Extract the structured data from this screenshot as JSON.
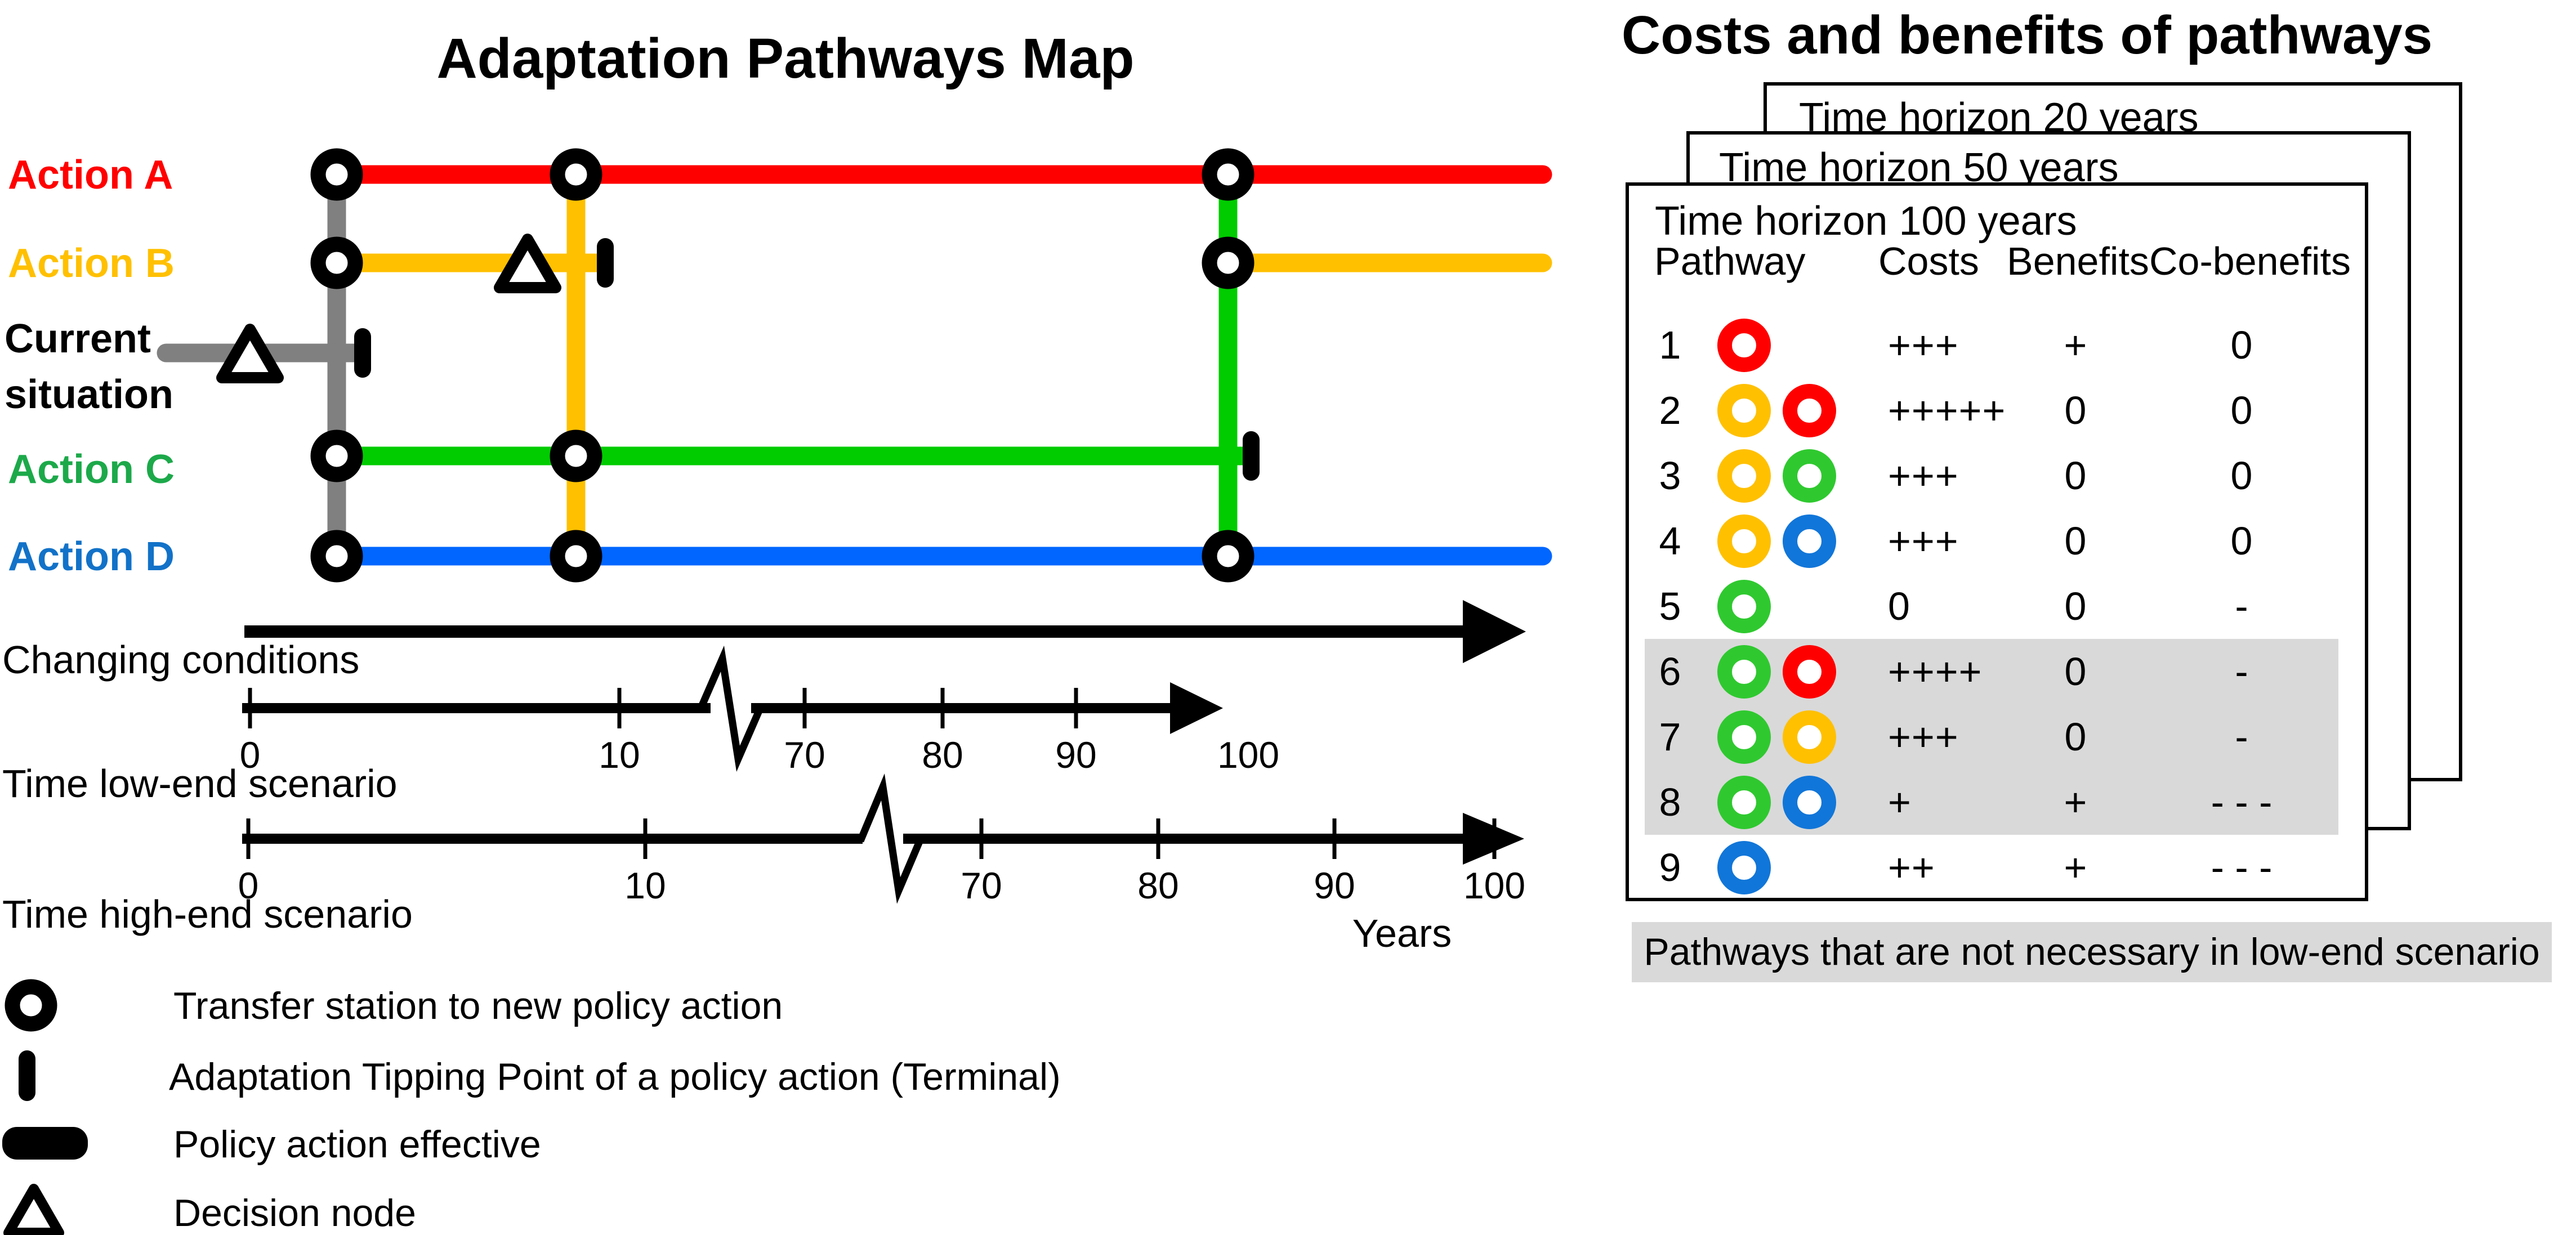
{
  "left_panel": {
    "title": "Adaptation Pathways Map",
    "actions": [
      {
        "id": "a",
        "label": "Action A",
        "color": "#FF0000"
      },
      {
        "id": "b",
        "label": "Action B",
        "color": "#FFC000"
      },
      {
        "id": "c",
        "label": "Action C",
        "color": "#1CA94A"
      },
      {
        "id": "d",
        "label": "Action D",
        "color": "#1272C8"
      }
    ],
    "current_situation": {
      "line1": "Current",
      "line2": "situation",
      "color": "#808080"
    },
    "axes": {
      "changing_conditions_label": "Changing conditions",
      "low_end": {
        "label": "Time low-end scenario",
        "ticks": [
          "0",
          "10",
          "70",
          "80",
          "90",
          "100"
        ]
      },
      "high_end": {
        "label": "Time high-end scenario",
        "ticks": [
          "0",
          "10",
          "70",
          "80",
          "90",
          "100"
        ],
        "unit": "Years"
      }
    },
    "legend": [
      {
        "icon": "transfer-station-icon",
        "label": "Transfer station to new policy action"
      },
      {
        "icon": "tipping-point-icon",
        "label": "Adaptation Tipping Point of a policy action (Terminal)"
      },
      {
        "icon": "policy-effective-icon",
        "label": "Policy action effective"
      },
      {
        "icon": "decision-node-icon",
        "label": "Decision node"
      }
    ]
  },
  "right_panel": {
    "title": "Costs and benefits of pathways",
    "cards": [
      "Time horizon 20 years",
      "Time horizon 50 years",
      "Time horizon 100 years"
    ],
    "table": {
      "headers": [
        "Pathway",
        "Costs",
        "Benefits",
        "Co-benefits"
      ],
      "rows": [
        {
          "num": "1",
          "rings": [
            "red"
          ],
          "costs": "+++",
          "benefits": "+",
          "cobenefits": "0",
          "highlight": false
        },
        {
          "num": "2",
          "rings": [
            "yellow",
            "red"
          ],
          "costs": "+++++",
          "benefits": "0",
          "cobenefits": "0",
          "highlight": false
        },
        {
          "num": "3",
          "rings": [
            "yellow",
            "green"
          ],
          "costs": "+++",
          "benefits": "0",
          "cobenefits": "0",
          "highlight": false
        },
        {
          "num": "4",
          "rings": [
            "yellow",
            "blue"
          ],
          "costs": "+++",
          "benefits": "0",
          "cobenefits": "0",
          "highlight": false
        },
        {
          "num": "5",
          "rings": [
            "green"
          ],
          "costs": "0",
          "benefits": "0",
          "cobenefits": "-",
          "highlight": false
        },
        {
          "num": "6",
          "rings": [
            "green",
            "red"
          ],
          "costs": "++++",
          "benefits": "0",
          "cobenefits": "-",
          "highlight": true
        },
        {
          "num": "7",
          "rings": [
            "green",
            "yellow"
          ],
          "costs": "+++",
          "benefits": "0",
          "cobenefits": "-",
          "highlight": true
        },
        {
          "num": "8",
          "rings": [
            "green",
            "blue"
          ],
          "costs": "+",
          "benefits": "+",
          "cobenefits": "- - -",
          "highlight": true
        },
        {
          "num": "9",
          "rings": [
            "blue"
          ],
          "costs": "++",
          "benefits": "+",
          "cobenefits": "- - -",
          "highlight": false
        }
      ]
    },
    "caption": "Pathways that are not necessary in low-end scenario"
  },
  "colors": {
    "line_red": "#FF0000",
    "line_yellow": "#FFC000",
    "line_green": "#00CC00",
    "line_blue": "#0066FF",
    "line_gray": "#808080",
    "label_green": "#1CA94A",
    "label_blue": "#1272C8",
    "highlight_gray": "#D9D9D9",
    "rings": {
      "red": "#FF0000",
      "yellow": "#FFC000",
      "green": "#2FC92F",
      "blue": "#1176D9"
    }
  }
}
